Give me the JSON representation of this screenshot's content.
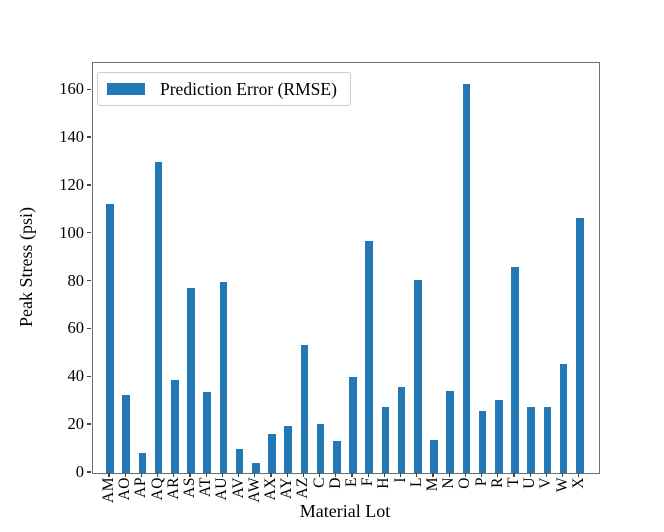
{
  "chart_data": {
    "type": "bar",
    "title": "",
    "xlabel": "Material Lot",
    "ylabel": "Peak Stress (psi)",
    "categories": [
      "AM",
      "AO",
      "AP",
      "AQ",
      "AR",
      "AS",
      "AT",
      "AU",
      "AV",
      "AW",
      "AX",
      "AY",
      "AZ",
      "C",
      "D",
      "E",
      "F",
      "H",
      "I",
      "L",
      "M",
      "N",
      "O",
      "P",
      "R",
      "T",
      "U",
      "V",
      "W",
      "X"
    ],
    "values": [
      112.5,
      32.5,
      8.5,
      130,
      39,
      77.5,
      34,
      80,
      10,
      4,
      16.5,
      19.5,
      53.5,
      20.5,
      13.5,
      40,
      97,
      27.5,
      36,
      80.5,
      14,
      34.5,
      162.5,
      26,
      30.5,
      86,
      27.5,
      27.5,
      45.5,
      106.5
    ],
    "series_name": "Prediction Error (RMSE)",
    "yticks": [
      0,
      20,
      40,
      60,
      80,
      100,
      120,
      140,
      160
    ],
    "ylim": [
      0,
      171.4
    ],
    "grid": false,
    "legend_position": "upper left",
    "bar_color": "#2279b5"
  },
  "legend": {
    "label": "Prediction Error (RMSE)",
    "swatch_color": "#2279b5"
  },
  "axes": {
    "xlabel": "Material Lot",
    "ylabel": "Peak Stress (psi)"
  }
}
